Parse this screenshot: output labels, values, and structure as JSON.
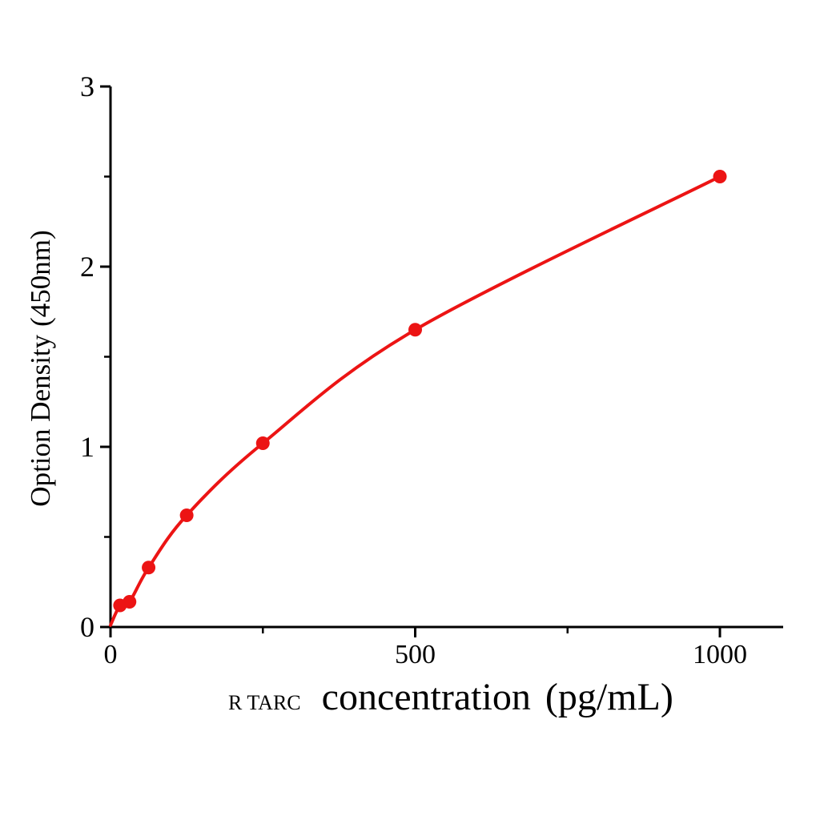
{
  "figure": {
    "background": "#ffffff"
  },
  "chart_data": {
    "type": "line",
    "subtype": "elisa-standard-curve-scatter-with-fitted-line",
    "title": "",
    "xlabel": "R TARC  concentration（pg/mL）",
    "xlabel_prefix": "R TARC",
    "xlabel_main": "concentration",
    "xlabel_unit": "（pg/mL）",
    "ylabel": "Option Density（450nm）",
    "ylabel_main": "Option Density",
    "ylabel_unit": "（450nm）",
    "points": [
      {
        "x": 15.6,
        "y": 0.12
      },
      {
        "x": 31.2,
        "y": 0.14
      },
      {
        "x": 62.5,
        "y": 0.33
      },
      {
        "x": 125,
        "y": 0.62
      },
      {
        "x": 250,
        "y": 1.02
      },
      {
        "x": 500,
        "y": 1.65
      },
      {
        "x": 1000,
        "y": 2.5
      }
    ],
    "curve_start": {
      "x": 0,
      "y": 0.01
    },
    "x_ticks": [
      0,
      500,
      1000
    ],
    "x_minor_ticks": [
      250,
      750
    ],
    "y_ticks": [
      0,
      1,
      2,
      3
    ],
    "y_minor_ticks": [
      0.5,
      1.5,
      2.5
    ],
    "xlim": [
      0,
      1104
    ],
    "ylim": [
      0,
      3
    ],
    "grid": false,
    "legend": null,
    "colors": {
      "curve": "#ec1414",
      "marker": "#ec1414",
      "axis": "#000000",
      "text": "#000000",
      "background": "#ffffff"
    }
  }
}
